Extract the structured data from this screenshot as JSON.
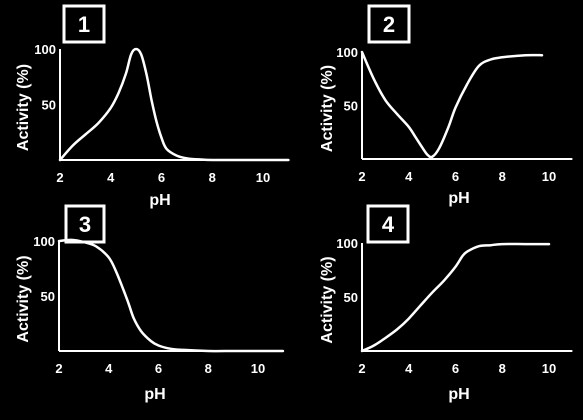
{
  "chart_data": [
    {
      "type": "line",
      "panel_label": "1",
      "xlabel": "pH",
      "ylabel": "Activity (%)",
      "xticks": [
        2,
        4,
        6,
        8,
        10
      ],
      "yticks": [
        50,
        100
      ],
      "xlim": [
        2,
        11
      ],
      "ylim": [
        0,
        100
      ],
      "series": [
        {
          "x": [
            2,
            2.5,
            3,
            3.5,
            4,
            4.3,
            4.6,
            4.8,
            5.0,
            5.2,
            5.4,
            5.6,
            5.8,
            6.0,
            6.2,
            6.6,
            7,
            7.5,
            8,
            9,
            10,
            11
          ],
          "y": [
            0,
            13,
            23,
            33,
            47,
            60,
            78,
            95,
            100,
            95,
            78,
            55,
            35,
            20,
            10,
            4,
            1.5,
            0.5,
            0,
            0,
            0,
            0
          ]
        }
      ]
    },
    {
      "type": "line",
      "panel_label": "2",
      "xlabel": "pH",
      "ylabel": "Activity (%)",
      "xticks": [
        2,
        4,
        6,
        8,
        10
      ],
      "yticks": [
        50,
        100
      ],
      "xlim": [
        2,
        11
      ],
      "ylim": [
        0,
        100
      ],
      "series": [
        {
          "x": [
            2,
            2.5,
            3,
            3.5,
            4,
            4.3,
            4.6,
            4.8,
            5.0,
            5.3,
            5.7,
            6,
            6.5,
            7,
            7.5,
            8,
            9,
            9.7
          ],
          "y": [
            100,
            75,
            55,
            42,
            30,
            20,
            10,
            4,
            2,
            10,
            30,
            48,
            70,
            87,
            93,
            95,
            97,
            97
          ]
        }
      ]
    },
    {
      "type": "line",
      "panel_label": "3",
      "xlabel": "pH",
      "ylabel": "Activity (%)",
      "xticks": [
        2,
        4,
        6,
        8,
        10
      ],
      "yticks": [
        50,
        100
      ],
      "xlim": [
        2,
        11
      ],
      "ylim": [
        0,
        100
      ],
      "series": [
        {
          "x": [
            2,
            2.5,
            3,
            3.5,
            4,
            4.3,
            4.6,
            4.8,
            5.0,
            5.3,
            5.7,
            6,
            6.5,
            7,
            8,
            9,
            10,
            11
          ],
          "y": [
            100,
            101,
            99,
            95,
            85,
            72,
            55,
            43,
            30,
            18,
            9,
            5,
            2,
            1,
            0,
            0,
            0,
            0
          ]
        }
      ]
    },
    {
      "type": "line",
      "panel_label": "4",
      "xlabel": "pH",
      "ylabel": "Activity (%)",
      "xticks": [
        2,
        4,
        6,
        8,
        10
      ],
      "yticks": [
        50,
        100
      ],
      "xlim": [
        2,
        11
      ],
      "ylim": [
        0,
        100
      ],
      "series": [
        {
          "x": [
            2,
            2.5,
            3,
            3.5,
            4,
            4.5,
            5,
            5.5,
            6,
            6.3,
            6.5,
            7,
            7.5,
            8,
            9,
            10
          ],
          "y": [
            0,
            5,
            12,
            20,
            30,
            42,
            54,
            65,
            78,
            88,
            92,
            97,
            98,
            99,
            99,
            99
          ]
        }
      ]
    }
  ]
}
